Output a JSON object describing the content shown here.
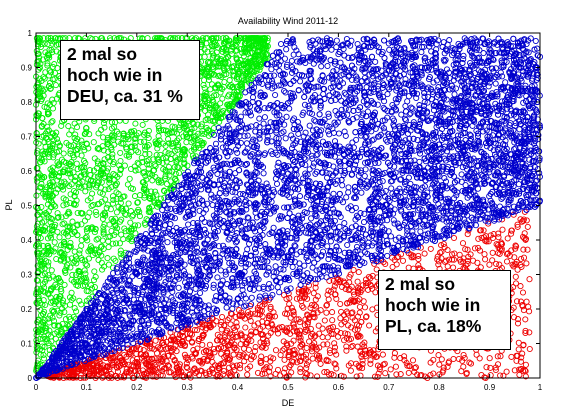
{
  "chart_data": {
    "type": "scatter",
    "title": "Availability Wind 2011-12",
    "xlabel": "DE",
    "ylabel": "PL",
    "xlim": [
      0,
      1
    ],
    "ylim": [
      0,
      1
    ],
    "xticks": [
      0,
      0.1,
      0.2,
      0.3,
      0.4,
      0.5,
      0.6,
      0.7,
      0.8,
      0.9,
      1
    ],
    "yticks": [
      0,
      0.1,
      0.2,
      0.3,
      0.4,
      0.5,
      0.6,
      0.7,
      0.8,
      0.9,
      1
    ],
    "xtick_labels": [
      "0",
      "0.1",
      "0.2",
      "0.3",
      "0.4",
      "0.5",
      "0.6",
      "0.7",
      "0.8",
      "0.9",
      "1"
    ],
    "ytick_labels": [
      "0",
      "0.1",
      "0.2",
      "0.3",
      "0.4",
      "0.5",
      "0.6",
      "0.7",
      "0.8",
      "0.9",
      "1"
    ],
    "marker": "open-circle",
    "grid": false,
    "series": [
      {
        "color": "#00ee00",
        "rule": "y > 2x",
        "approx_points": 2200
      },
      {
        "color": "#0000cc",
        "rule": "x/2 <= y <= 2x",
        "approx_points": 6000
      },
      {
        "color": "#ee0000",
        "rule": "y < x/2",
        "approx_points": 1600
      }
    ],
    "annotations": [
      {
        "lines": [
          "2 mal so",
          "hoch wie in",
          "DEU, ca. 31 %"
        ]
      },
      {
        "lines": [
          "2 mal so",
          "hoch wie in",
          "PL, ca. 18%"
        ]
      }
    ]
  }
}
